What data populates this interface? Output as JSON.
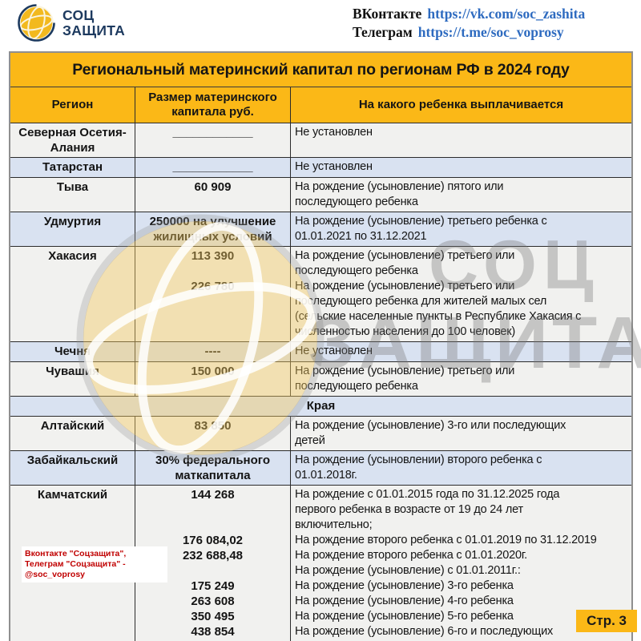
{
  "header": {
    "logo": {
      "line1": "СОЦ",
      "line2": "ЗАЩИТА"
    },
    "contacts": [
      {
        "label": "ВКонтакте",
        "url": "https://vk.com/soc_zashita"
      },
      {
        "label": "Телеграм",
        "url": "https://t.me/soc_voprosy"
      }
    ]
  },
  "table": {
    "title": "Региональный материнский капитал по регионам РФ в 2024 году",
    "columns": [
      "Регион",
      "Размер материнского капитала руб.",
      "На какого ребенка выплачивается"
    ],
    "rows": [
      {
        "type": "data",
        "shade": "light",
        "region": "Северная Осетия-Алания",
        "amount": "____________",
        "condition": "Не установлен"
      },
      {
        "type": "data",
        "shade": "blue",
        "region": "Татарстан",
        "amount": "____________",
        "condition": "Не установлен"
      },
      {
        "type": "data",
        "shade": "light",
        "region": "Тыва",
        "amount": "60 909",
        "condition": "На рождение (усыновление) пятого или\nпоследующего ребенка"
      },
      {
        "type": "data",
        "shade": "blue",
        "region": "Удмуртия",
        "amount": "250000 на улучшение жилищных условий",
        "condition": "На рождение (усыновление) третьего ребенка с\n01.01.2021 по 31.12.2021"
      },
      {
        "type": "data",
        "shade": "light",
        "region": "Хакасия",
        "amount": "113 390\n\n226 780",
        "condition": "На рождение (усыновление) третьего или\nпоследующего ребенка\nНа рождение (усыновление) третьего или\nпоследующего ребенка для жителей малых сел\n(сельские населенные пункты в Республике Хакасия с\nчисленностью населения до 100 человек)"
      },
      {
        "type": "data",
        "shade": "blue",
        "region": "Чечня",
        "amount": "----",
        "condition": "Не установлен"
      },
      {
        "type": "data",
        "shade": "light",
        "region": "Чувашия",
        "amount": "150 000",
        "condition": "На рождение (усыновление) третьего или\nпоследующего ребенка"
      },
      {
        "type": "section",
        "shade": "blue",
        "label": "Края"
      },
      {
        "type": "data",
        "shade": "light",
        "region": "Алтайский",
        "amount": "83 850",
        "condition": "На рождение (усыновление) 3-го или последующих\nдетей"
      },
      {
        "type": "data",
        "shade": "blue",
        "region": "Забайкальский",
        "amount": "30% федерального маткапитала",
        "condition": "На рождение (усыновлении) второго ребенка с\n01.01.2018г."
      },
      {
        "type": "data",
        "shade": "light",
        "region": "Камчатский",
        "amount": "144 268\n\n\n176 084,02\n232 688,48\n\n175 249\n263 608\n350 495\n438 854",
        "condition": "На рождение с 01.01.2015 года по 31.12.2025 года\nпервого ребенка в возрасте от 19 до 24 лет\nвключительно;\nНа рождение второго ребенка с 01.01.2019 по 31.12.2019\nНа рождение второго ребенка с 01.01.2020г.\nНа рождение (усыновление) с 01.01.2011г.:\nНа рождение (усыновление) 3-го ребенка\nНа рождение (усыновление) 4-го ребенка\nНа рождение (усыновление) 5-го ребенка\nНа рождение (усыновление) 6-го и последующих",
        "note": "Вконтакте \"Соцзащита\", Телеграм \"Соцзащита\" - @soc_voprosy"
      }
    ]
  },
  "watermark": {
    "line1": "СОЦ",
    "line2": "ЗАЩИТА"
  },
  "footer": {
    "page_badge": "Стр. 3"
  },
  "colors": {
    "accent_yellow": "#fbb817",
    "row_blue": "#d9e2f1",
    "row_light": "#f1f1ef",
    "link_blue": "#2e6bc0",
    "logo_navy": "#1d3a5f",
    "note_red": "#c00000"
  }
}
